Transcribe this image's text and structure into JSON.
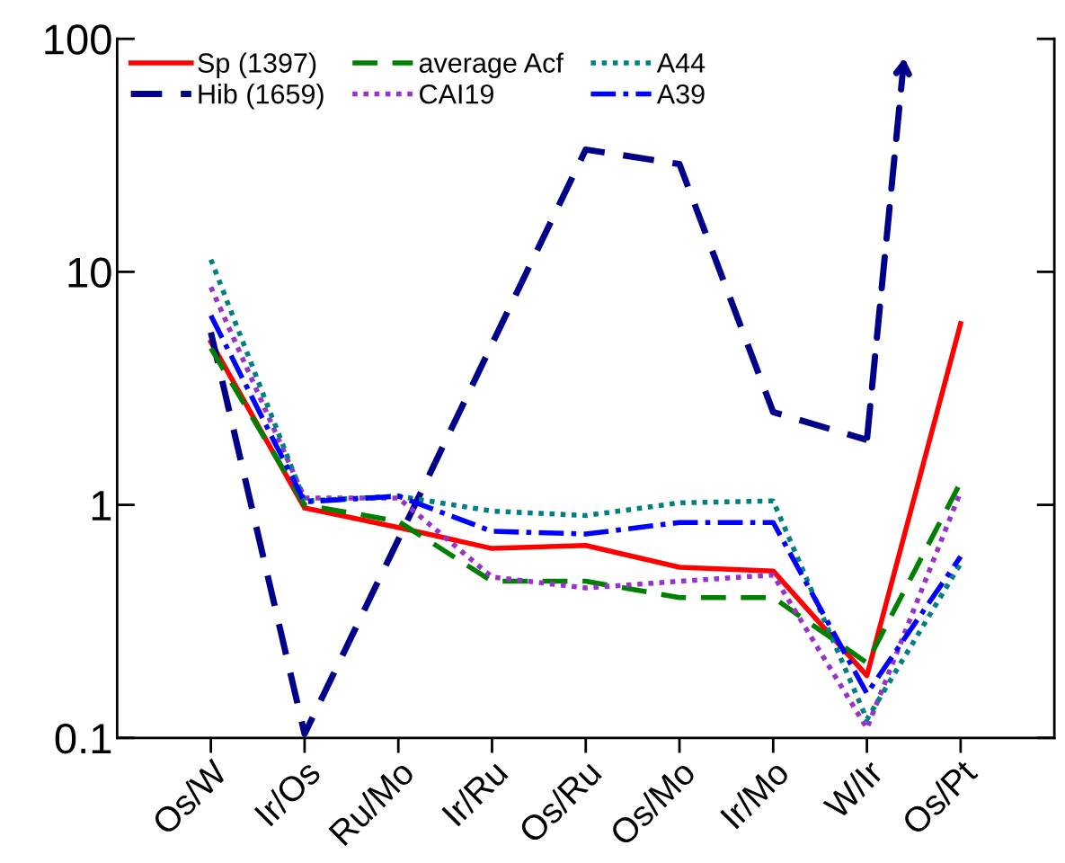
{
  "chart_data": {
    "type": "line",
    "categories": [
      "Os/W",
      "Ir/Os",
      "Ru/Mo",
      "Ir/Ru",
      "Os/Ru",
      "Os/Mo",
      "Ir/Mo",
      "W/Ir",
      "Os/Pt"
    ],
    "log": "y",
    "ylim": [
      0.1,
      100
    ],
    "yticks": [
      0.1,
      1,
      10,
      100
    ],
    "grid": false,
    "legend": "top left",
    "series": [
      {
        "name": "Sp (1397)",
        "color": "#ff0000",
        "line_style": "solid",
        "values": [
          5.0,
          0.97,
          0.8,
          0.65,
          0.67,
          0.54,
          0.52,
          0.185,
          6.0
        ]
      },
      {
        "name": "Hib (1659)",
        "color": "#00008b",
        "line_style": "dashed",
        "values": [
          5.5,
          0.104,
          0.71,
          4.9,
          33.5,
          29,
          2.5,
          1.9,
          null
        ]
      },
      {
        "name": "average Acf",
        "color": "#008000",
        "line_style": "dashed",
        "values": [
          4.7,
          1.0,
          0.85,
          0.47,
          0.47,
          0.4,
          0.4,
          0.21,
          1.25
        ]
      },
      {
        "name": "CAI19",
        "color": "#9932cc",
        "line_style": "dotted",
        "values": [
          8.6,
          1.07,
          1.07,
          0.49,
          0.44,
          0.47,
          0.5,
          0.11,
          1.14
        ]
      },
      {
        "name": "A44",
        "color": "#008080",
        "line_style": "dotted",
        "values": [
          11.3,
          1.04,
          1.09,
          0.94,
          0.9,
          1.02,
          1.04,
          0.12,
          0.56
        ]
      },
      {
        "name": "A39",
        "color": "#0000ff",
        "line_style": "dashdot",
        "values": [
          6.5,
          1.03,
          1.09,
          0.77,
          0.75,
          0.84,
          0.84,
          0.155,
          0.6
        ]
      }
    ]
  }
}
